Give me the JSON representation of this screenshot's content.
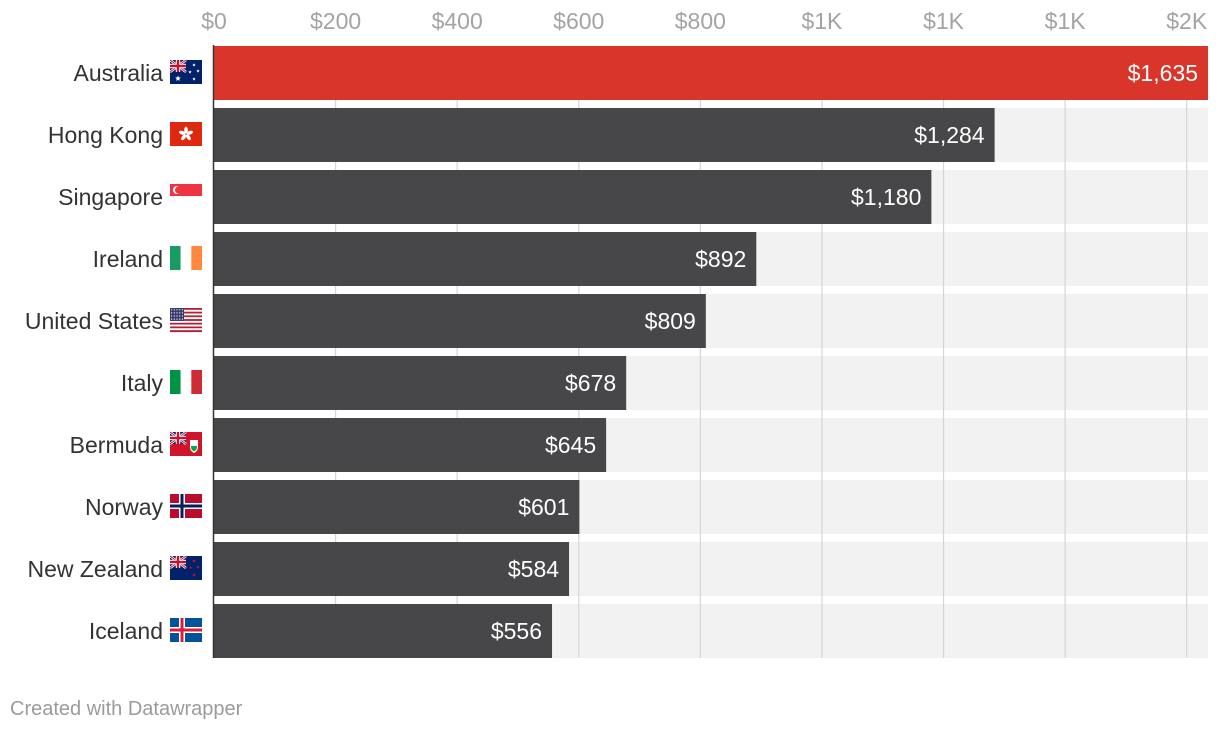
{
  "chart_data": {
    "type": "bar",
    "orientation": "horizontal",
    "categories": [
      "Australia",
      "Hong Kong",
      "Singapore",
      "Ireland",
      "United States",
      "Italy",
      "Bermuda",
      "Norway",
      "New Zealand",
      "Iceland"
    ],
    "values": [
      1635,
      1284,
      1180,
      892,
      809,
      678,
      645,
      601,
      584,
      556
    ],
    "value_labels": [
      "$1,635",
      "$1,284",
      "$1,180",
      "$892",
      "$809",
      "$678",
      "$645",
      "$601",
      "$584",
      "$556"
    ],
    "flags": [
      "flag-australia-icon",
      "flag-hong-kong-icon",
      "flag-singapore-icon",
      "flag-ireland-icon",
      "flag-united-states-icon",
      "flag-italy-icon",
      "flag-bermuda-icon",
      "flag-norway-icon",
      "flag-new-zealand-icon",
      "flag-iceland-icon"
    ],
    "x_ticks": [
      0,
      200,
      400,
      600,
      800,
      1000,
      1200,
      1400,
      1600
    ],
    "x_tick_labels": [
      "$0",
      "$200",
      "$400",
      "$600",
      "$800",
      "$1K",
      "$1K",
      "$1K",
      "$2K"
    ],
    "xlim": [
      0,
      1635
    ],
    "highlight_index": 0,
    "title": "",
    "xlabel": "",
    "ylabel": ""
  },
  "colors": {
    "highlight": "#d9352a",
    "bar": "#474749",
    "track": "#f2f2f2",
    "grid": "#d5d5d5",
    "axis": "#333333"
  },
  "footer": {
    "credit": "Created with Datawrapper"
  }
}
